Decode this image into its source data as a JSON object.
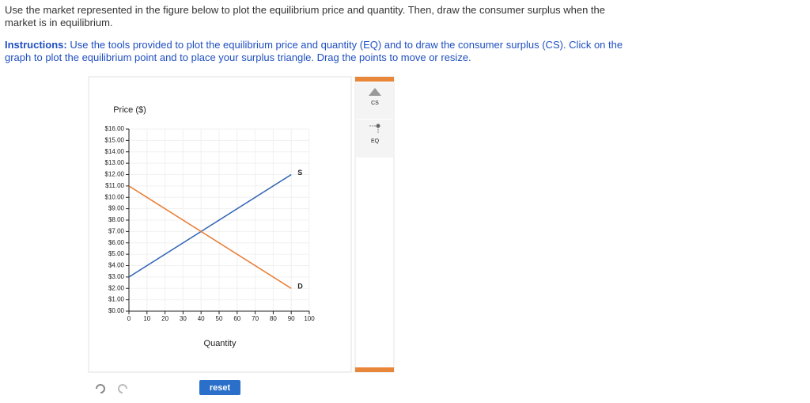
{
  "question": "Use the market represented in the figure below to plot the equilibrium price and quantity. Then, draw the consumer surplus when the market is in equilibrium.",
  "instructions": {
    "label": "Instructions:",
    "text": "Use the tools provided to plot the equilibrium price and quantity (EQ) and to draw the consumer surplus (CS). Click on the graph to plot the equilibrium point and to place your surplus triangle. Drag the points to move or resize."
  },
  "chart_data": {
    "type": "line",
    "y_label": "Price ($)",
    "x_label": "Quantity",
    "x": [
      0,
      90
    ],
    "series": [
      {
        "name": "S",
        "color": "#2e62b3",
        "values": [
          3,
          12
        ]
      },
      {
        "name": "D",
        "color": "#e8782e",
        "values": [
          11,
          2
        ]
      }
    ],
    "xlim": [
      0,
      100
    ],
    "ylim": [
      0,
      16
    ],
    "xticks": [
      0,
      10,
      20,
      30,
      40,
      50,
      60,
      70,
      80,
      90,
      100
    ],
    "yticks": [
      {
        "value": 0,
        "label": "$0.00"
      },
      {
        "value": 1,
        "label": "$1.00"
      },
      {
        "value": 2,
        "label": "$2.00"
      },
      {
        "value": 3,
        "label": "$3.00"
      },
      {
        "value": 4,
        "label": "$4.00"
      },
      {
        "value": 5,
        "label": "$5.00"
      },
      {
        "value": 6,
        "label": "$6.00"
      },
      {
        "value": 7,
        "label": "$7.00"
      },
      {
        "value": 8,
        "label": "$8.00"
      },
      {
        "value": 9,
        "label": "$9.00"
      },
      {
        "value": 10,
        "label": "$10.00"
      },
      {
        "value": 11,
        "label": "$11.00"
      },
      {
        "value": 12,
        "label": "$12.00"
      },
      {
        "value": 13,
        "label": "$13.00"
      },
      {
        "value": 14,
        "label": "$14.00"
      },
      {
        "value": 15,
        "label": "$15.00"
      },
      {
        "value": 16,
        "label": "$16.00"
      }
    ],
    "grid": true
  },
  "tools": [
    "CS",
    "EQ"
  ],
  "reset": "reset"
}
